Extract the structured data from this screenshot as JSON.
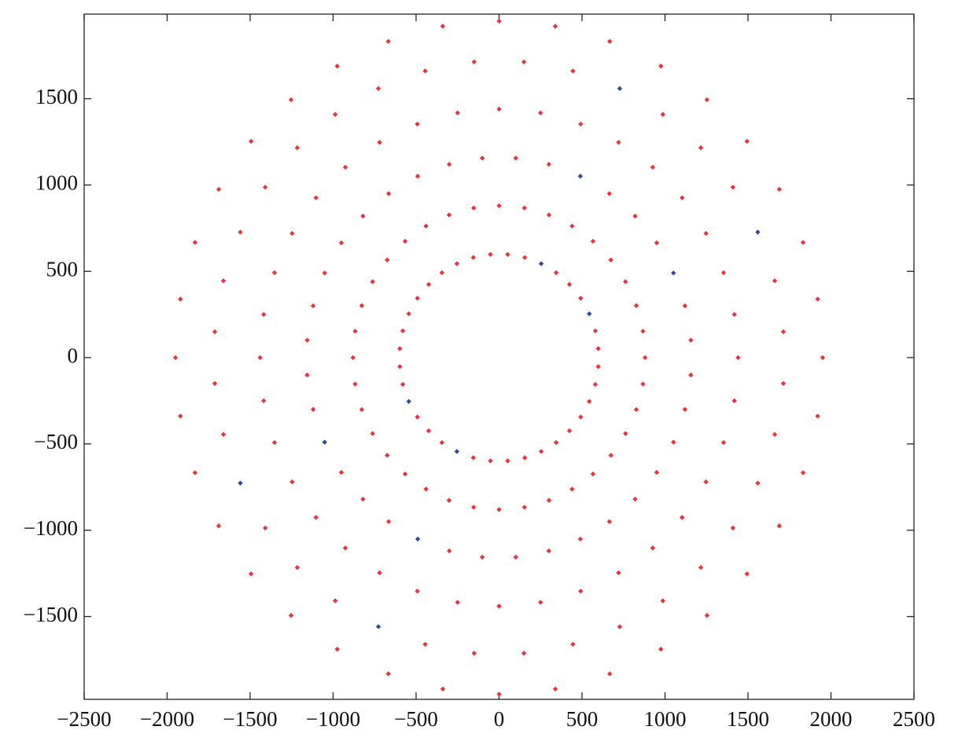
{
  "chart_data": {
    "type": "scatter",
    "xlim": [
      -2500,
      2500
    ],
    "ylim": [
      -1980,
      1990
    ],
    "xticks": [
      {
        "value": -2500,
        "label": "−2500"
      },
      {
        "value": -2000,
        "label": "−2000"
      },
      {
        "value": -1500,
        "label": "−1500"
      },
      {
        "value": -1000,
        "label": "−1000"
      },
      {
        "value": -500,
        "label": "−500"
      },
      0,
      500,
      1000,
      1500,
      2000,
      2500
    ],
    "yticks": [
      {
        "value": -1500,
        "label": "−1500"
      },
      {
        "value": -1000,
        "label": "−1000"
      },
      {
        "value": -500,
        "label": "−500"
      },
      0,
      500,
      1000,
      1500
    ],
    "grid": false,
    "series": [
      {
        "color": "#e8323c",
        "x": [
          880,
          1440,
          1950,
          598,
          1156,
          1713,
          867,
          1418,
          1920,
          580,
          1120,
          1661,
          827,
          1353,
          1832,
          762,
          1247,
          1689,
          492,
          950,
          1409,
          674,
          1103,
          1494,
          424,
          820,
          1216,
          566,
          926,
          1253,
          344,
          665,
          987,
          440,
          720,
          975,
          301,
          492,
          667,
          155,
          300,
          445,
          153,
          250,
          339,
          52,
          101,
          150,
          0,
          0,
          0,
          -52,
          -101,
          -150,
          -153,
          -250,
          -339,
          -155,
          -300,
          -445,
          -301,
          -492,
          -667,
          -254,
          -490,
          -727,
          -440,
          -720,
          -975,
          -344,
          -665,
          -987,
          -566,
          -926,
          -1253,
          -424,
          -820,
          -1216,
          -674,
          -1103,
          -1494,
          -492,
          -950,
          -1409,
          -762,
          -1247,
          -1689,
          -544,
          -1051,
          -1559,
          -827,
          -1353,
          -1832,
          -580,
          -1120,
          -1661,
          -867,
          -1418,
          -1920,
          -598,
          -1156,
          -1713,
          -880,
          -1440,
          -1950,
          -598,
          -1156,
          -1713,
          -867,
          -1418,
          -1920,
          -580,
          -1120,
          -1661,
          -827,
          -1353,
          -1832,
          -762,
          -1247,
          -1689,
          -492,
          -950,
          -1409,
          -674,
          -1103,
          -1494,
          -424,
          -820,
          -1216,
          -566,
          -926,
          -1253,
          -344,
          -665,
          -987,
          -440,
          -720,
          -975,
          -301,
          -492,
          -667,
          -155,
          -300,
          -445,
          -153,
          -250,
          -339,
          -52,
          -101,
          -150,
          0,
          0,
          0,
          52,
          101,
          150,
          153,
          250,
          339,
          155,
          300,
          445,
          301,
          492,
          667,
          254,
          490,
          727,
          440,
          720,
          975,
          344,
          665,
          987,
          566,
          926,
          1253,
          424,
          820,
          1216,
          674,
          1103,
          1494,
          492,
          950,
          1409,
          762,
          1247,
          1689,
          544,
          1051,
          1559,
          827,
          1353,
          1832,
          580,
          1120,
          1661,
          867,
          1418,
          1920,
          598,
          1156,
          1713
        ],
        "values": [
          0,
          0,
          0,
          52,
          101,
          150,
          153,
          250,
          339,
          155,
          300,
          445,
          301,
          492,
          667,
          440,
          720,
          975,
          344,
          665,
          987,
          566,
          926,
          1253,
          424,
          820,
          1216,
          674,
          1103,
          1494,
          492,
          950,
          1409,
          762,
          1247,
          1689,
          827,
          1353,
          1832,
          580,
          1120,
          1661,
          867,
          1418,
          1920,
          598,
          1156,
          1713,
          880,
          1440,
          1950,
          598,
          1156,
          1713,
          867,
          1418,
          1920,
          580,
          1120,
          1661,
          827,
          1353,
          1832,
          544,
          1051,
          1559,
          762,
          1247,
          1689,
          492,
          950,
          1409,
          674,
          1103,
          1494,
          424,
          820,
          1216,
          566,
          926,
          1253,
          344,
          665,
          987,
          440,
          720,
          975,
          254,
          490,
          727,
          301,
          492,
          667,
          155,
          300,
          445,
          153,
          250,
          339,
          52,
          101,
          150,
          0,
          0,
          0,
          -52,
          -101,
          -150,
          -153,
          -250,
          -339,
          -155,
          -300,
          -445,
          -301,
          -492,
          -667,
          -440,
          -720,
          -975,
          -344,
          -665,
          -987,
          -566,
          -926,
          -1253,
          -424,
          -820,
          -1216,
          -674,
          -1103,
          -1494,
          -492,
          -950,
          -1409,
          -762,
          -1247,
          -1689,
          -827,
          -1353,
          -1832,
          -580,
          -1120,
          -1661,
          -867,
          -1418,
          -1920,
          -598,
          -1156,
          -1713,
          -880,
          -1440,
          -1950,
          -598,
          -1156,
          -1713,
          -867,
          -1418,
          -1920,
          -580,
          -1120,
          -1661,
          -827,
          -1353,
          -1832,
          -544,
          -1051,
          -1559,
          -762,
          -1247,
          -1689,
          -492,
          -950,
          -1409,
          -674,
          -1103,
          -1494,
          -424,
          -820,
          -1216,
          -566,
          -926,
          -1253,
          -344,
          -665,
          -987,
          -440,
          -720,
          -975,
          -254,
          -490,
          -727,
          -301,
          -492,
          -667,
          -155,
          -300,
          -445,
          -153,
          -250,
          -339,
          -52,
          -101,
          -150
        ]
      },
      {
        "color": "#2e4a9e",
        "x": [
          544,
          1051,
          1559,
          254,
          490,
          727,
          -544,
          -1051,
          -1559,
          -254,
          -490,
          -727
        ],
        "values": [
          254,
          490,
          727,
          544,
          1051,
          1559,
          -254,
          -490,
          -727,
          -544,
          -1051,
          -1559
        ]
      }
    ]
  }
}
